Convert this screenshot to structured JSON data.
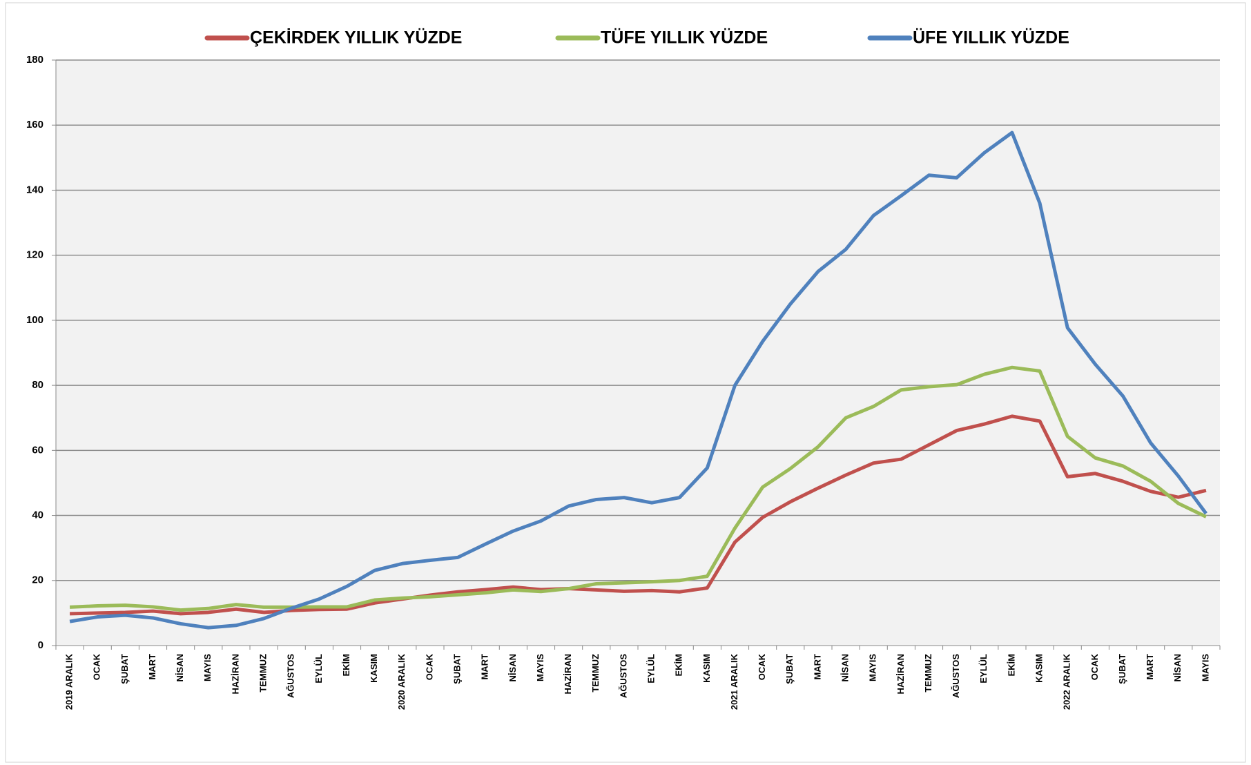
{
  "chart_data": {
    "type": "line",
    "categories": [
      "2019 ARALIK",
      "OCAK",
      "ŞUBAT",
      "MART",
      "NİSAN",
      "MAYIS",
      "HAZİRAN",
      "TEMMUZ",
      "AĞUSTOS",
      "EYLÜL",
      "EKİM",
      "KASIM",
      "2020 ARALIK",
      "OCAK",
      "ŞUBAT",
      "MART",
      "NİSAN",
      "MAYIS",
      "HAZİRAN",
      "TEMMUZ",
      "AĞUSTOS",
      "EYLÜL",
      "EKİM",
      "KASIM",
      "2021 ARALIK",
      "OCAK",
      "ŞUBAT",
      "MART",
      "NİSAN",
      "MAYIS",
      "HAZİRAN",
      "TEMMUZ",
      "AĞUSTOS",
      "EYLÜL",
      "EKİM",
      "KASIM",
      "2022 ARALIK",
      "OCAK",
      "ŞUBAT",
      "MART",
      "NİSAN",
      "MAYIS"
    ],
    "series": [
      {
        "name": "ÇEKİRDEK YILLIK YÜZDE",
        "color": "#c0504d",
        "values": [
          9.8,
          10,
          10.2,
          10.6,
          9.8,
          10.2,
          11.2,
          10.2,
          10.8,
          11.1,
          11.2,
          13.1,
          14.3,
          15.5,
          16.5,
          17.2,
          18,
          17.2,
          17.5,
          17.1,
          16.7,
          16.9,
          16.5,
          17.7,
          31.8,
          39.4,
          44.2,
          48.4,
          52.4,
          56.1,
          57.3,
          61.7,
          66.1,
          68.1,
          70.5,
          69,
          51.9,
          52.9,
          50.5,
          47.4,
          45.6,
          47.7
        ]
      },
      {
        "name": "TÜFE YILLIK YÜZDE",
        "color": "#9bbb59",
        "values": [
          11.8,
          12.2,
          12.4,
          11.9,
          10.9,
          11.4,
          12.6,
          11.8,
          11.8,
          11.9,
          11.9,
          14,
          14.6,
          15,
          15.6,
          16.2,
          17.1,
          16.6,
          17.5,
          19,
          19.3,
          19.6,
          20,
          21.3,
          36.1,
          48.7,
          54.4,
          61.1,
          70,
          73.5,
          78.6,
          79.6,
          80.2,
          83.4,
          85.5,
          84.4,
          64.3,
          57.7,
          55.2,
          50.5,
          43.7,
          39.6
        ]
      },
      {
        "name": "ÜFE YILLIK YÜZDE",
        "color": "#4f81bd",
        "values": [
          7.4,
          8.8,
          9.3,
          8.5,
          6.7,
          5.5,
          6.2,
          8.3,
          11.5,
          14.3,
          18.2,
          23.1,
          25.2,
          26.2,
          27.1,
          31.2,
          35.2,
          38.3,
          42.9,
          44.9,
          45.5,
          43.9,
          45.5,
          54.6,
          80,
          93.5,
          105,
          115,
          121.8,
          132.2,
          138.3,
          144.6,
          143.8,
          151.5,
          157.7,
          136,
          97.7,
          86.5,
          76.7,
          62.3,
          52.1,
          40.6
        ]
      }
    ],
    "ylim": [
      0,
      180
    ],
    "yticks": [
      0,
      20,
      40,
      60,
      80,
      100,
      120,
      140,
      160,
      180
    ],
    "grid": true,
    "legend": "top"
  }
}
